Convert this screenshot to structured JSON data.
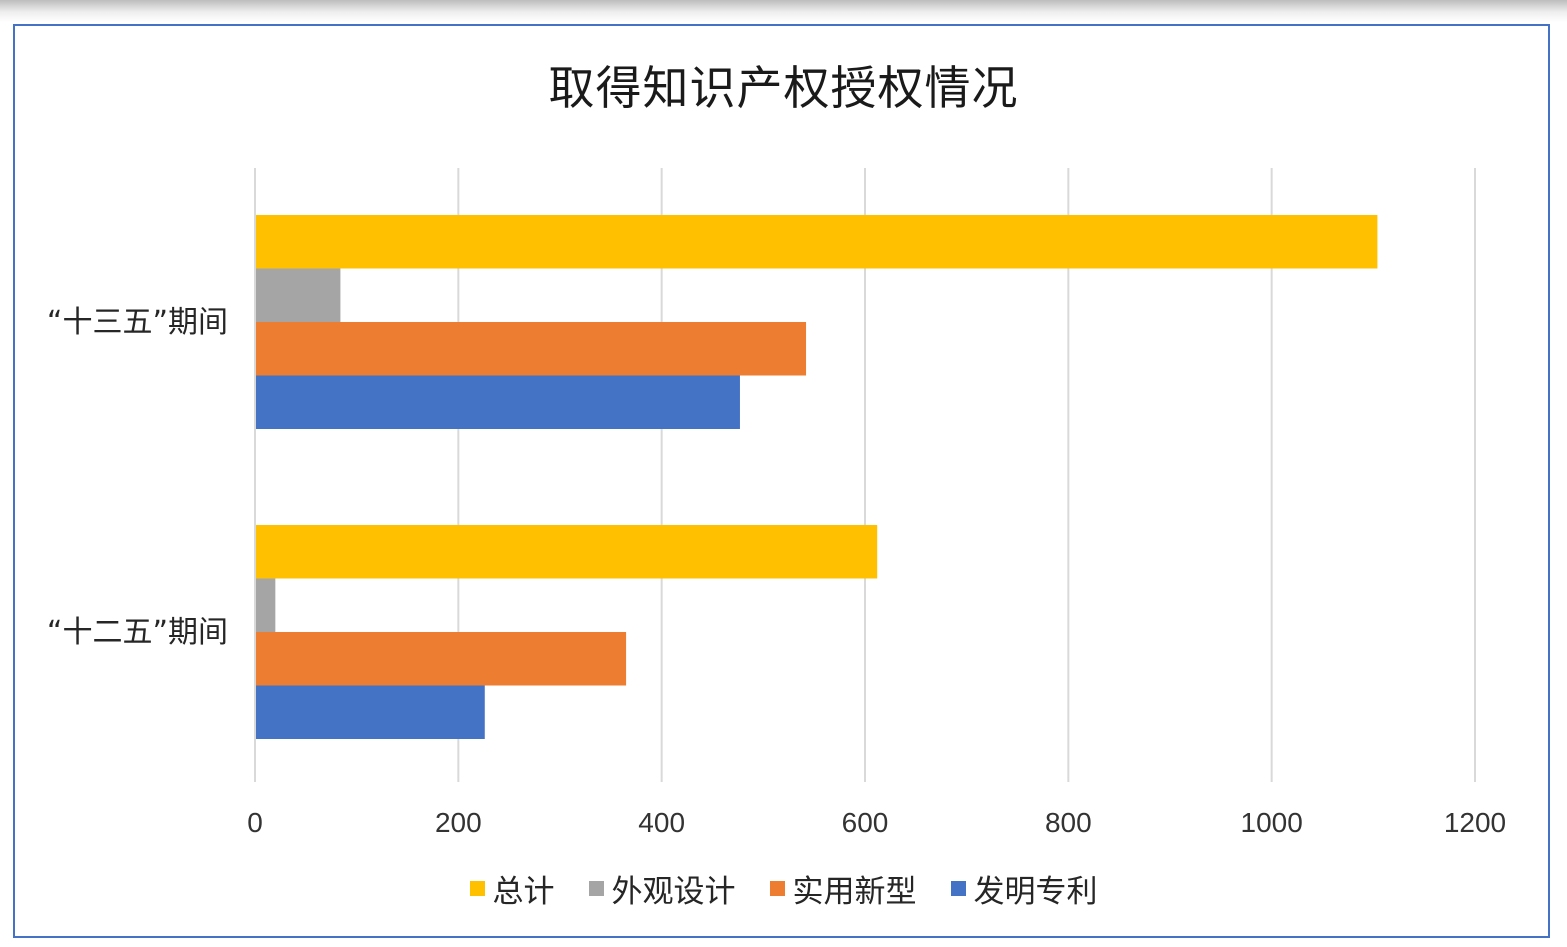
{
  "chart_data": {
    "type": "bar",
    "orientation": "horizontal",
    "title": "取得知识产权授权情况",
    "categories": [
      "“十三五”期间",
      "“十二五”期间"
    ],
    "series": [
      {
        "name": "总计",
        "color": "#ffc000",
        "values": [
          1104,
          612
        ]
      },
      {
        "name": "外观设计",
        "color": "#a5a5a5",
        "values": [
          84,
          20
        ]
      },
      {
        "name": "实用新型",
        "color": "#ed7d31",
        "values": [
          542,
          365
        ]
      },
      {
        "name": "发明专利",
        "color": "#4472c4",
        "values": [
          477,
          226
        ]
      }
    ],
    "xlim": [
      0,
      1200
    ],
    "xticks": [
      "0",
      "200",
      "400",
      "600",
      "800",
      "1000",
      "1200"
    ],
    "grid": true,
    "legend": "bottom"
  },
  "colors": {
    "frame_border": "#4472c4",
    "gridline": "#d9d9d9"
  }
}
